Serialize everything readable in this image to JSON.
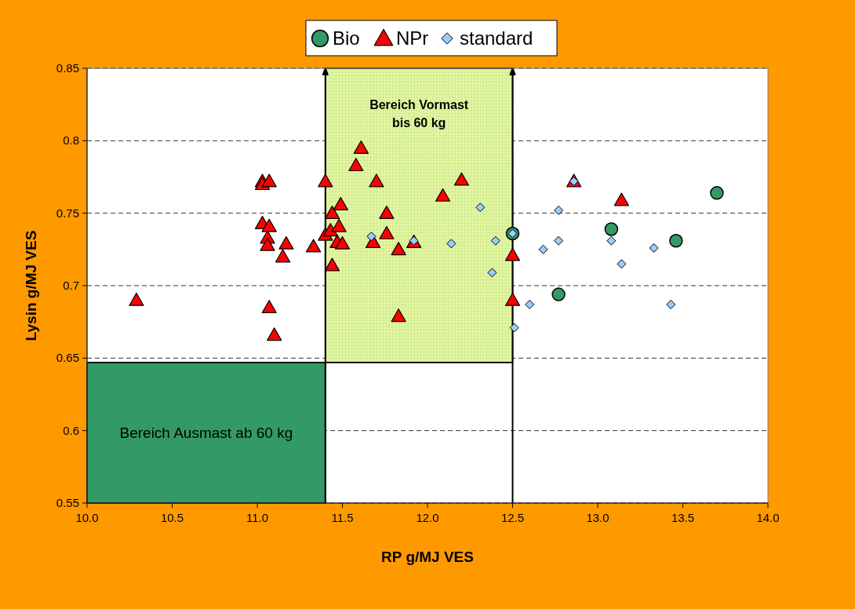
{
  "chart_data": {
    "type": "scatter",
    "xlabel": "RP g/MJ VES",
    "ylabel": "Lysin g/MJ VES",
    "xlim": [
      10,
      14
    ],
    "xticks": [
      {
        "value": 10,
        "label": "10.0"
      },
      {
        "value": 10.5,
        "label": "10.5"
      },
      {
        "value": 11,
        "label": "11.0"
      },
      {
        "value": 11.5,
        "label": "11.5"
      },
      {
        "value": 12,
        "label": "12.0"
      },
      {
        "value": 12.5,
        "label": "12.5"
      },
      {
        "value": 13,
        "label": "13.0"
      },
      {
        "value": 13.5,
        "label": "13.5"
      },
      {
        "value": 14,
        "label": "14.0"
      }
    ],
    "ylim": [
      0.55,
      0.85
    ],
    "yticks": [
      0.55,
      0.6,
      0.65,
      0.7,
      0.75,
      0.8,
      0.85
    ],
    "grid": "y",
    "legend": "top",
    "bands": [
      {
        "axis": "x",
        "from": 10,
        "to": 11.4,
        "label": "Bereich Ausmast ab 60 kg",
        "color": "#339966"
      },
      {
        "axis": "x",
        "from": 11.4,
        "to": 12.5,
        "label": "Bereich Vormast\nbis 60 kg",
        "color": "#e2f5a8"
      }
    ],
    "ref_lines": [
      {
        "axis": "x",
        "value": 11.4
      },
      {
        "axis": "x",
        "value": 12.5
      },
      {
        "axis": "y",
        "value": 0.647
      }
    ],
    "series": [
      {
        "name": "Bio",
        "color": "#339966",
        "marker": "circle",
        "x": [
          12.5,
          12.77,
          13.08,
          13.46,
          13.7
        ],
        "values": [
          0.736,
          0.694,
          0.739,
          0.731,
          0.764
        ]
      },
      {
        "name": "NPr",
        "color": "#ff0000",
        "marker": "triangle",
        "x": [
          10.29,
          11.03,
          11.03,
          11.07,
          11.03,
          11.07,
          11.06,
          11.06,
          11.17,
          11.15,
          11.33,
          11.07,
          11.1,
          11.4,
          11.4,
          11.44,
          11.49,
          11.43,
          11.47,
          11.48,
          11.5,
          11.44,
          11.58,
          11.61,
          11.7,
          11.68,
          11.76,
          11.76,
          11.83,
          11.83,
          11.92,
          12.09,
          12.2,
          12.5,
          12.5,
          12.86,
          13.14
        ],
        "values": [
          0.69,
          0.772,
          0.77,
          0.772,
          0.743,
          0.741,
          0.733,
          0.728,
          0.729,
          0.72,
          0.727,
          0.685,
          0.666,
          0.772,
          0.735,
          0.75,
          0.756,
          0.738,
          0.73,
          0.741,
          0.729,
          0.714,
          0.783,
          0.795,
          0.772,
          0.73,
          0.75,
          0.736,
          0.725,
          0.679,
          0.73,
          0.762,
          0.773,
          0.721,
          0.69,
          0.772,
          0.759
        ]
      },
      {
        "name": "standard",
        "color": "#99ccff",
        "marker": "diamond",
        "x": [
          11.67,
          11.92,
          12.14,
          12.31,
          12.4,
          12.38,
          12.5,
          12.51,
          12.6,
          12.68,
          12.77,
          12.77,
          12.86,
          13.08,
          13.14,
          13.33,
          13.43
        ],
        "values": [
          0.734,
          0.731,
          0.729,
          0.754,
          0.731,
          0.709,
          0.736,
          0.671,
          0.687,
          0.725,
          0.752,
          0.731,
          0.772,
          0.731,
          0.715,
          0.726,
          0.687
        ]
      }
    ]
  }
}
